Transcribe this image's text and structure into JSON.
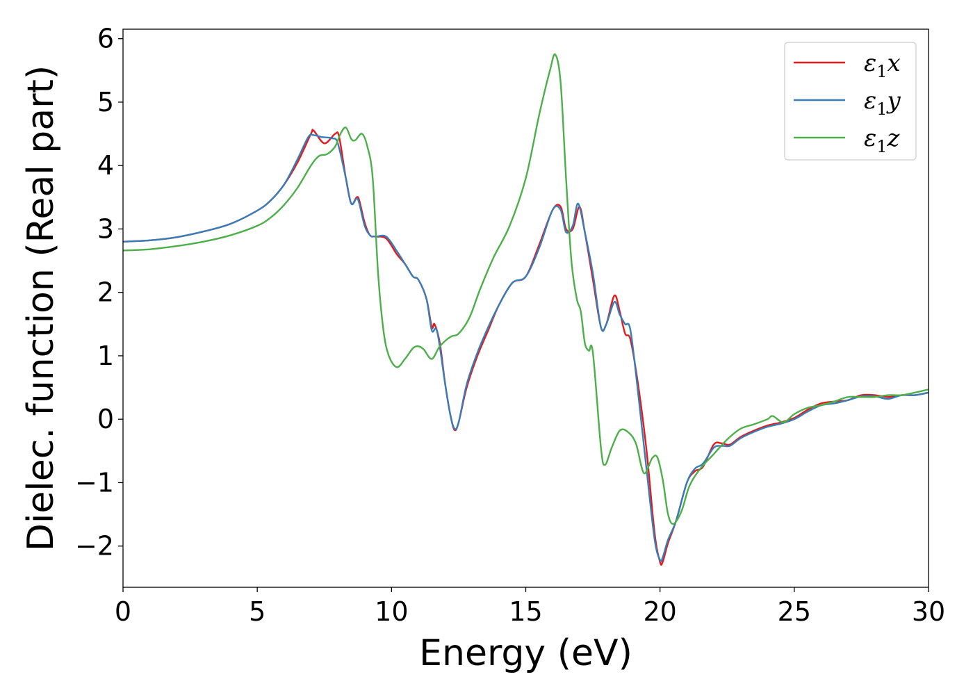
{
  "chart_data": {
    "type": "line",
    "title": "",
    "xlabel": "Energy (eV)",
    "ylabel": "Dielec. function (Real part)",
    "xlim": [
      0,
      30
    ],
    "ylim": [
      -2.65,
      6.15
    ],
    "xticks": [
      0,
      5,
      10,
      15,
      20,
      25,
      30
    ],
    "xtick_labels": [
      "0",
      "5",
      "10",
      "15",
      "20",
      "25",
      "30"
    ],
    "yticks": [
      -2,
      -1,
      0,
      1,
      2,
      3,
      4,
      5,
      6
    ],
    "ytick_labels": [
      "−2",
      "−1",
      "0",
      "1",
      "2",
      "3",
      "4",
      "5",
      "6"
    ],
    "grid": false,
    "legend_position": "top-right",
    "series": [
      {
        "name": "ε1x",
        "label_main": "ε",
        "label_sub": "1",
        "label_axis": "x",
        "color": "#e41a1c",
        "x": [
          0,
          1,
          2,
          3,
          4,
          5,
          5.5,
          6,
          6.5,
          7,
          7.1,
          7.5,
          7.9,
          8.05,
          8.3,
          8.5,
          8.7,
          8.8,
          9,
          9.2,
          9.4,
          9.8,
          10.2,
          10.5,
          10.8,
          11,
          11.3,
          11.5,
          11.6,
          11.8,
          12,
          12.2,
          12.35,
          12.5,
          12.8,
          13.2,
          13.6,
          14,
          14.5,
          15,
          15.5,
          16,
          16.3,
          16.5,
          16.75,
          17,
          17.2,
          17.5,
          17.8,
          18,
          18.3,
          18.5,
          18.7,
          18.9,
          19.2,
          19.5,
          19.8,
          20,
          20.1,
          20.3,
          20.6,
          21,
          21.3,
          21.6,
          22,
          22.3,
          22.6,
          23,
          23.5,
          24,
          24.5,
          25,
          25.5,
          26,
          26.5,
          27,
          27.5,
          28,
          28.5,
          29,
          29.5,
          30
        ],
        "y": [
          2.8,
          2.82,
          2.87,
          2.96,
          3.08,
          3.29,
          3.45,
          3.7,
          4.05,
          4.5,
          4.55,
          4.35,
          4.5,
          4.45,
          3.8,
          3.4,
          3.5,
          3.45,
          3.1,
          2.9,
          2.88,
          2.85,
          2.6,
          2.45,
          2.25,
          2.2,
          1.9,
          1.45,
          1.5,
          1.2,
          0.55,
          0.05,
          -0.17,
          -0.05,
          0.5,
          1.0,
          1.4,
          1.8,
          2.15,
          2.25,
          2.75,
          3.3,
          3.35,
          3.0,
          3.0,
          3.35,
          2.95,
          2.2,
          1.45,
          1.5,
          1.95,
          1.7,
          1.35,
          1.25,
          0.5,
          -0.5,
          -1.8,
          -2.25,
          -2.25,
          -1.95,
          -1.6,
          -1.0,
          -0.82,
          -0.75,
          -0.4,
          -0.38,
          -0.4,
          -0.28,
          -0.18,
          -0.1,
          -0.05,
          0.02,
          0.15,
          0.25,
          0.28,
          0.3,
          0.38,
          0.38,
          0.35,
          0.38,
          0.38,
          0.42
        ]
      },
      {
        "name": "ε1y",
        "label_main": "ε",
        "label_sub": "1",
        "label_axis": "y",
        "color": "#377eb8",
        "x": [
          0,
          1,
          2,
          3,
          4,
          5,
          5.5,
          6,
          6.5,
          6.9,
          7.1,
          7.4,
          7.8,
          8.0,
          8.3,
          8.5,
          8.7,
          8.8,
          9,
          9.2,
          9.4,
          9.8,
          10.2,
          10.5,
          10.8,
          11,
          11.3,
          11.5,
          11.7,
          12,
          12.2,
          12.35,
          12.5,
          12.8,
          13.2,
          13.6,
          14,
          14.5,
          15,
          15.5,
          16,
          16.3,
          16.5,
          16.75,
          16.95,
          17.2,
          17.5,
          17.8,
          18,
          18.3,
          18.5,
          18.7,
          18.9,
          19.2,
          19.5,
          19.8,
          20,
          20.1,
          20.3,
          20.6,
          21,
          21.3,
          21.6,
          22,
          22.3,
          22.6,
          23,
          23.5,
          24,
          24.5,
          25,
          25.5,
          26,
          26.5,
          27,
          27.5,
          28,
          28.5,
          29,
          29.5,
          30
        ],
        "y": [
          2.8,
          2.82,
          2.87,
          2.96,
          3.08,
          3.29,
          3.45,
          3.7,
          4.1,
          4.45,
          4.48,
          4.45,
          4.43,
          4.35,
          3.8,
          3.4,
          3.48,
          3.4,
          3.05,
          2.9,
          2.88,
          2.88,
          2.65,
          2.45,
          2.25,
          2.2,
          1.9,
          1.4,
          1.38,
          0.55,
          0.05,
          -0.15,
          -0.05,
          0.55,
          1.05,
          1.45,
          1.8,
          2.15,
          2.25,
          2.7,
          3.3,
          3.3,
          2.95,
          3.05,
          3.4,
          2.95,
          2.3,
          1.45,
          1.5,
          1.85,
          1.65,
          1.5,
          1.4,
          0.35,
          -0.8,
          -1.9,
          -2.22,
          -2.18,
          -1.9,
          -1.6,
          -1.0,
          -0.78,
          -0.7,
          -0.45,
          -0.42,
          -0.42,
          -0.3,
          -0.2,
          -0.12,
          -0.07,
          0.0,
          0.12,
          0.22,
          0.25,
          0.3,
          0.36,
          0.36,
          0.32,
          0.38,
          0.38,
          0.42
        ]
      },
      {
        "name": "ε1z",
        "label_main": "ε",
        "label_sub": "1",
        "label_axis": "z",
        "color": "#4daf4a",
        "x": [
          0,
          1,
          2,
          3,
          4,
          5,
          5.5,
          6,
          6.5,
          7,
          7.3,
          7.6,
          7.9,
          8.1,
          8.3,
          8.5,
          8.65,
          8.9,
          9.1,
          9.3,
          9.5,
          9.7,
          9.9,
          10.2,
          10.5,
          10.8,
          11.0,
          11.2,
          11.5,
          11.8,
          12.2,
          12.5,
          12.9,
          13.3,
          13.8,
          14.4,
          15.0,
          15.5,
          15.9,
          16.1,
          16.3,
          16.5,
          16.7,
          16.9,
          17.05,
          17.2,
          17.35,
          17.5,
          17.8,
          17.95,
          18.2,
          18.5,
          18.8,
          19.1,
          19.4,
          19.7,
          19.9,
          20.1,
          20.3,
          20.5,
          20.8,
          21.1,
          21.5,
          22.0,
          22.5,
          23.0,
          23.5,
          24.0,
          24.2,
          24.6,
          25.0,
          25.5,
          26.0,
          26.5,
          27.0,
          27.5,
          28.0,
          28.5,
          29.0,
          29.5,
          30
        ],
        "y": [
          2.66,
          2.68,
          2.73,
          2.8,
          2.9,
          3.05,
          3.18,
          3.38,
          3.65,
          4.0,
          4.15,
          4.18,
          4.3,
          4.5,
          4.6,
          4.42,
          4.4,
          4.5,
          4.3,
          3.8,
          2.3,
          1.4,
          1.0,
          0.82,
          0.95,
          1.12,
          1.15,
          1.1,
          0.95,
          1.15,
          1.3,
          1.35,
          1.6,
          2.05,
          2.55,
          3.05,
          3.8,
          4.8,
          5.5,
          5.75,
          5.3,
          3.8,
          2.5,
          1.9,
          1.7,
          1.2,
          1.08,
          1.05,
          -0.45,
          -0.72,
          -0.45,
          -0.18,
          -0.2,
          -0.38,
          -0.85,
          -0.62,
          -0.6,
          -0.95,
          -1.5,
          -1.65,
          -1.45,
          -1.05,
          -0.78,
          -0.55,
          -0.32,
          -0.15,
          -0.08,
          0.0,
          0.05,
          -0.05,
          0.08,
          0.18,
          0.22,
          0.28,
          0.35,
          0.35,
          0.35,
          0.38,
          0.38,
          0.42,
          0.47
        ]
      }
    ]
  }
}
